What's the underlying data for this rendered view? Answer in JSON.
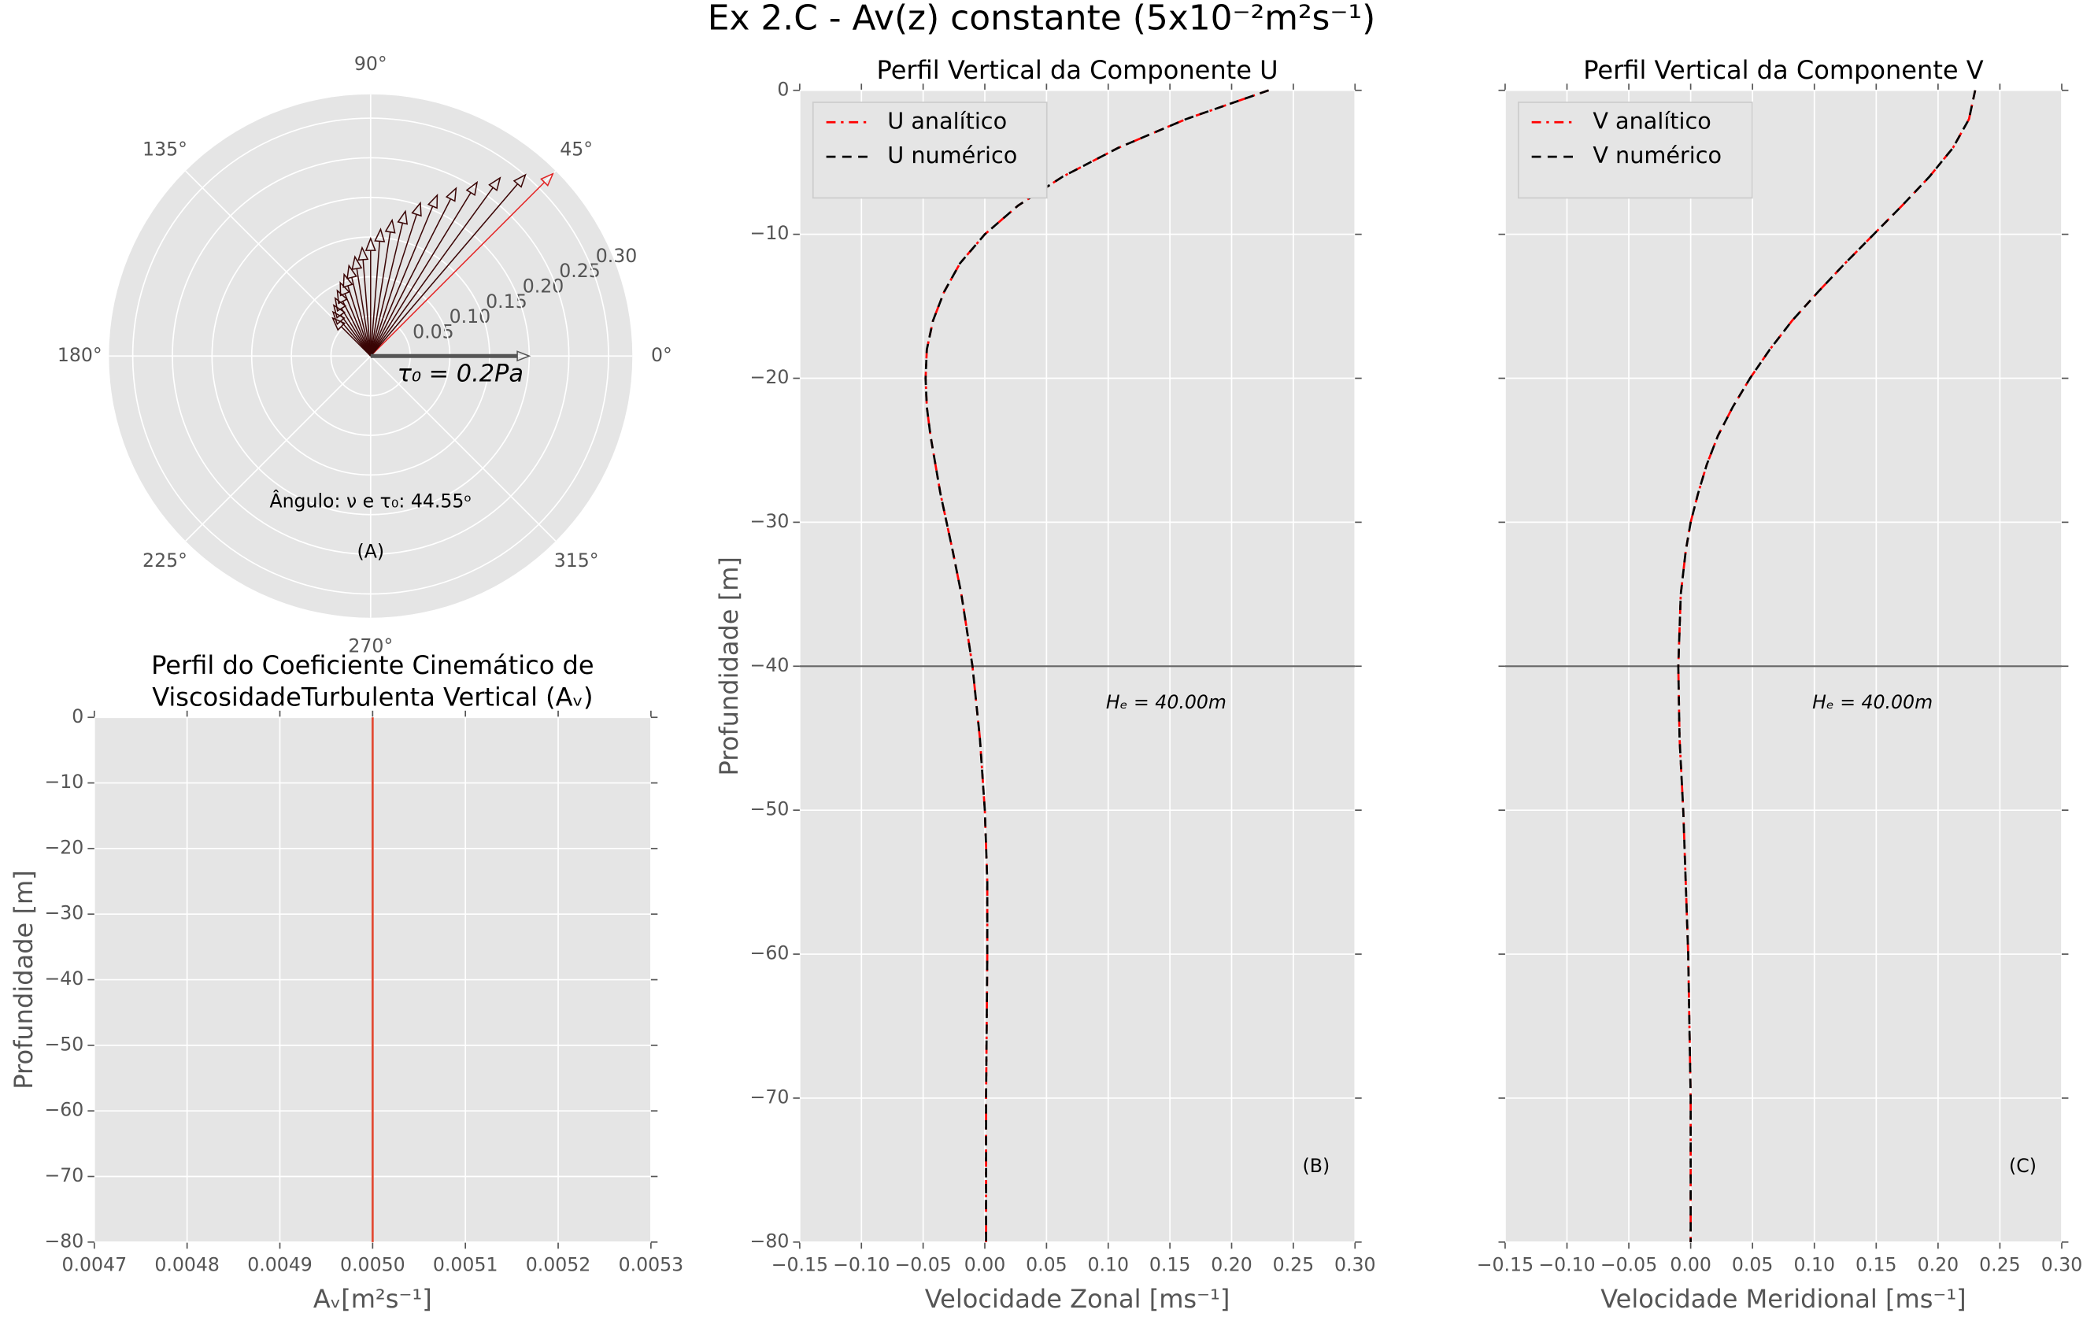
{
  "title": "Ex 2.C - Av(z) constante (5x10⁻²m²s⁻¹)",
  "chart_data": [
    {
      "type": "polar",
      "rlim": [
        0,
        0.33
      ],
      "rticks": [
        0.05,
        {
          "value": 0.1,
          "label": "0.10"
        },
        0.15,
        {
          "value": 0.2,
          "label": "0.20"
        },
        0.25,
        {
          "value": 0.3,
          "label": "0.30"
        }
      ],
      "angle_ticks": [
        {
          "value": 0,
          "label": "0°"
        },
        {
          "value": 45,
          "label": "45°"
        },
        {
          "value": 90,
          "label": "90°"
        },
        {
          "value": 135,
          "label": "135°"
        },
        {
          "value": 180,
          "label": "180°"
        },
        {
          "value": 225,
          "label": "225°"
        },
        {
          "value": 270,
          "label": "270°"
        },
        {
          "value": 315,
          "label": "315°"
        }
      ],
      "series": [
        {
          "color": "#3a0505",
          "highlight_color": "#e02020",
          "theta": [
            45,
            49.5,
            54,
            58.5,
            63,
            67.5,
            72,
            76.5,
            81,
            85.5,
            90,
            94.5,
            99,
            103.5,
            108,
            112.5,
            117,
            121.5,
            126,
            130.5,
            135
          ],
          "r": [
            0.325,
            0.3005,
            0.2777,
            0.2568,
            0.2374,
            0.2195,
            0.2029,
            0.1876,
            0.1734,
            0.1603,
            0.1482,
            0.137,
            0.1267,
            0.1171,
            0.1082,
            0.1001,
            0.0925,
            0.0855,
            0.0791,
            0.0731,
            0.0676
          ]
        }
      ],
      "stress": {
        "theta": 0,
        "r": 0.2,
        "label": "τ₀ = 0.2Pa",
        "color": "#555555"
      },
      "annotation": "Ângulo: ν e τ₀: 44.55ᵒ",
      "panel_label": "(A)"
    },
    {
      "type": "line",
      "title": [
        "Perfil do Coeficiente Cinemático de",
        "ViscosidadeTurbulenta Vertical (Aᵥ)"
      ],
      "xlabel": "Aᵥ[m²s⁻¹]",
      "ylabel": "Profundidade [m]",
      "grid": true,
      "xlim": [
        0.0047,
        0.0053
      ],
      "ylim": [
        -80,
        0
      ],
      "xticks": [
        0.0047,
        0.0048,
        0.0049,
        {
          "value": 0.005,
          "label": "0.0050"
        },
        0.0051,
        0.0052,
        0.0053
      ],
      "yticks": [
        0,
        {
          "value": -10,
          "label": "−10"
        },
        {
          "value": -20,
          "label": "−20"
        },
        {
          "value": -30,
          "label": "−30"
        },
        {
          "value": -40,
          "label": "−40"
        },
        {
          "value": -50,
          "label": "−50"
        },
        {
          "value": -60,
          "label": "−60"
        },
        {
          "value": -70,
          "label": "−70"
        },
        {
          "value": -80,
          "label": "−80"
        }
      ],
      "y": [
        0,
        -80
      ],
      "series": [
        {
          "color": "#e24a33",
          "values": [
            0.005,
            0.005
          ]
        }
      ]
    },
    {
      "type": "line",
      "title": [
        "Perfil Vertical da Componente U"
      ],
      "xlabel": "Velocidade Zonal [ms⁻¹]",
      "ylabel": "Profundidade [m]",
      "grid": true,
      "xlim": [
        -0.15,
        0.3
      ],
      "ylim": [
        -80,
        0
      ],
      "xticks": [
        {
          "value": -0.15,
          "label": "−0.15"
        },
        {
          "value": -0.1,
          "label": "−0.10"
        },
        {
          "value": -0.05,
          "label": "−0.05"
        },
        {
          "value": 0,
          "label": "0.00"
        },
        0.05,
        {
          "value": 0.1,
          "label": "0.10"
        },
        0.15,
        {
          "value": 0.2,
          "label": "0.20"
        },
        0.25,
        {
          "value": 0.3,
          "label": "0.30"
        }
      ],
      "yticks": [
        0,
        {
          "value": -10,
          "label": "−10"
        },
        {
          "value": -20,
          "label": "−20"
        },
        {
          "value": -30,
          "label": "−30"
        },
        {
          "value": -40,
          "label": "−40"
        },
        {
          "value": -50,
          "label": "−50"
        },
        {
          "value": -60,
          "label": "−60"
        },
        {
          "value": -70,
          "label": "−70"
        },
        {
          "value": -80,
          "label": "−80"
        }
      ],
      "hline": -40,
      "hline_label": "Hₑ = 40.00m",
      "panel_label": "(B)",
      "y": [
        0,
        -2,
        -4,
        -6,
        -8,
        -10,
        -12,
        -14,
        -16,
        -18,
        -20,
        -22,
        -24,
        -26,
        -28,
        -30,
        -32,
        -35,
        -40,
        -45,
        -50,
        -55,
        -60,
        -70,
        -80
      ],
      "series": [
        {
          "name": "U analítico",
          "color": "#ff0000",
          "dash": "dashdot",
          "values": [
            0.23,
            0.163,
            0.108,
            0.063,
            0.027,
            0.0,
            -0.02,
            -0.033,
            -0.042,
            -0.047,
            -0.048,
            -0.047,
            -0.044,
            -0.04,
            -0.036,
            -0.031,
            -0.026,
            -0.019,
            -0.01,
            -0.004,
            0.0,
            0.002,
            0.002,
            0.001,
            0.001
          ]
        },
        {
          "name": "U numérico",
          "color": "#000000",
          "dash": "dashed",
          "values": [
            0.23,
            0.163,
            0.108,
            0.063,
            0.027,
            0.0,
            -0.02,
            -0.033,
            -0.042,
            -0.047,
            -0.048,
            -0.047,
            -0.044,
            -0.04,
            -0.036,
            -0.031,
            -0.026,
            -0.019,
            -0.01,
            -0.004,
            0.0,
            0.002,
            0.002,
            0.001,
            0.001
          ]
        }
      ]
    },
    {
      "type": "line",
      "title": [
        "Perfil Vertical da Componente V"
      ],
      "xlabel": "Velocidade Meridional [ms⁻¹]",
      "grid": true,
      "xlim": [
        -0.15,
        0.3
      ],
      "ylim": [
        -80,
        0
      ],
      "xticks": [
        {
          "value": -0.15,
          "label": "−0.15"
        },
        {
          "value": -0.1,
          "label": "−0.10"
        },
        {
          "value": -0.05,
          "label": "−0.05"
        },
        {
          "value": 0,
          "label": "0.00"
        },
        0.05,
        {
          "value": 0.1,
          "label": "0.10"
        },
        0.15,
        {
          "value": 0.2,
          "label": "0.20"
        },
        0.25,
        {
          "value": 0.3,
          "label": "0.30"
        }
      ],
      "yticks": [
        0,
        -10,
        -20,
        -30,
        -40,
        -50,
        -60,
        -70,
        -80
      ],
      "hide_yticklabels": true,
      "hline": -40,
      "hline_label": "Hₑ = 40.00m",
      "panel_label": "(C)",
      "y": [
        0,
        -2,
        -4,
        -6,
        -8,
        -10,
        -12,
        -14,
        -16,
        -18,
        -20,
        -22,
        -24,
        -26,
        -28,
        -30,
        -32,
        -35,
        -40,
        -45,
        -50,
        -55,
        -60,
        -70,
        -80
      ],
      "series": [
        {
          "name": "V analítico",
          "color": "#ff0000",
          "dash": "dashdot",
          "values": [
            0.23,
            0.225,
            0.212,
            0.193,
            0.171,
            0.148,
            0.125,
            0.103,
            0.082,
            0.064,
            0.048,
            0.034,
            0.022,
            0.013,
            0.006,
            0.0,
            -0.004,
            -0.008,
            -0.01,
            -0.009,
            -0.006,
            -0.004,
            -0.002,
            0.0,
            0.0
          ]
        },
        {
          "name": "V numérico",
          "color": "#000000",
          "dash": "dashed",
          "values": [
            0.23,
            0.225,
            0.212,
            0.193,
            0.171,
            0.148,
            0.125,
            0.103,
            0.082,
            0.064,
            0.048,
            0.034,
            0.022,
            0.013,
            0.006,
            0.0,
            -0.004,
            -0.008,
            -0.01,
            -0.009,
            -0.006,
            -0.004,
            -0.002,
            0.0,
            0.0
          ]
        }
      ]
    }
  ]
}
